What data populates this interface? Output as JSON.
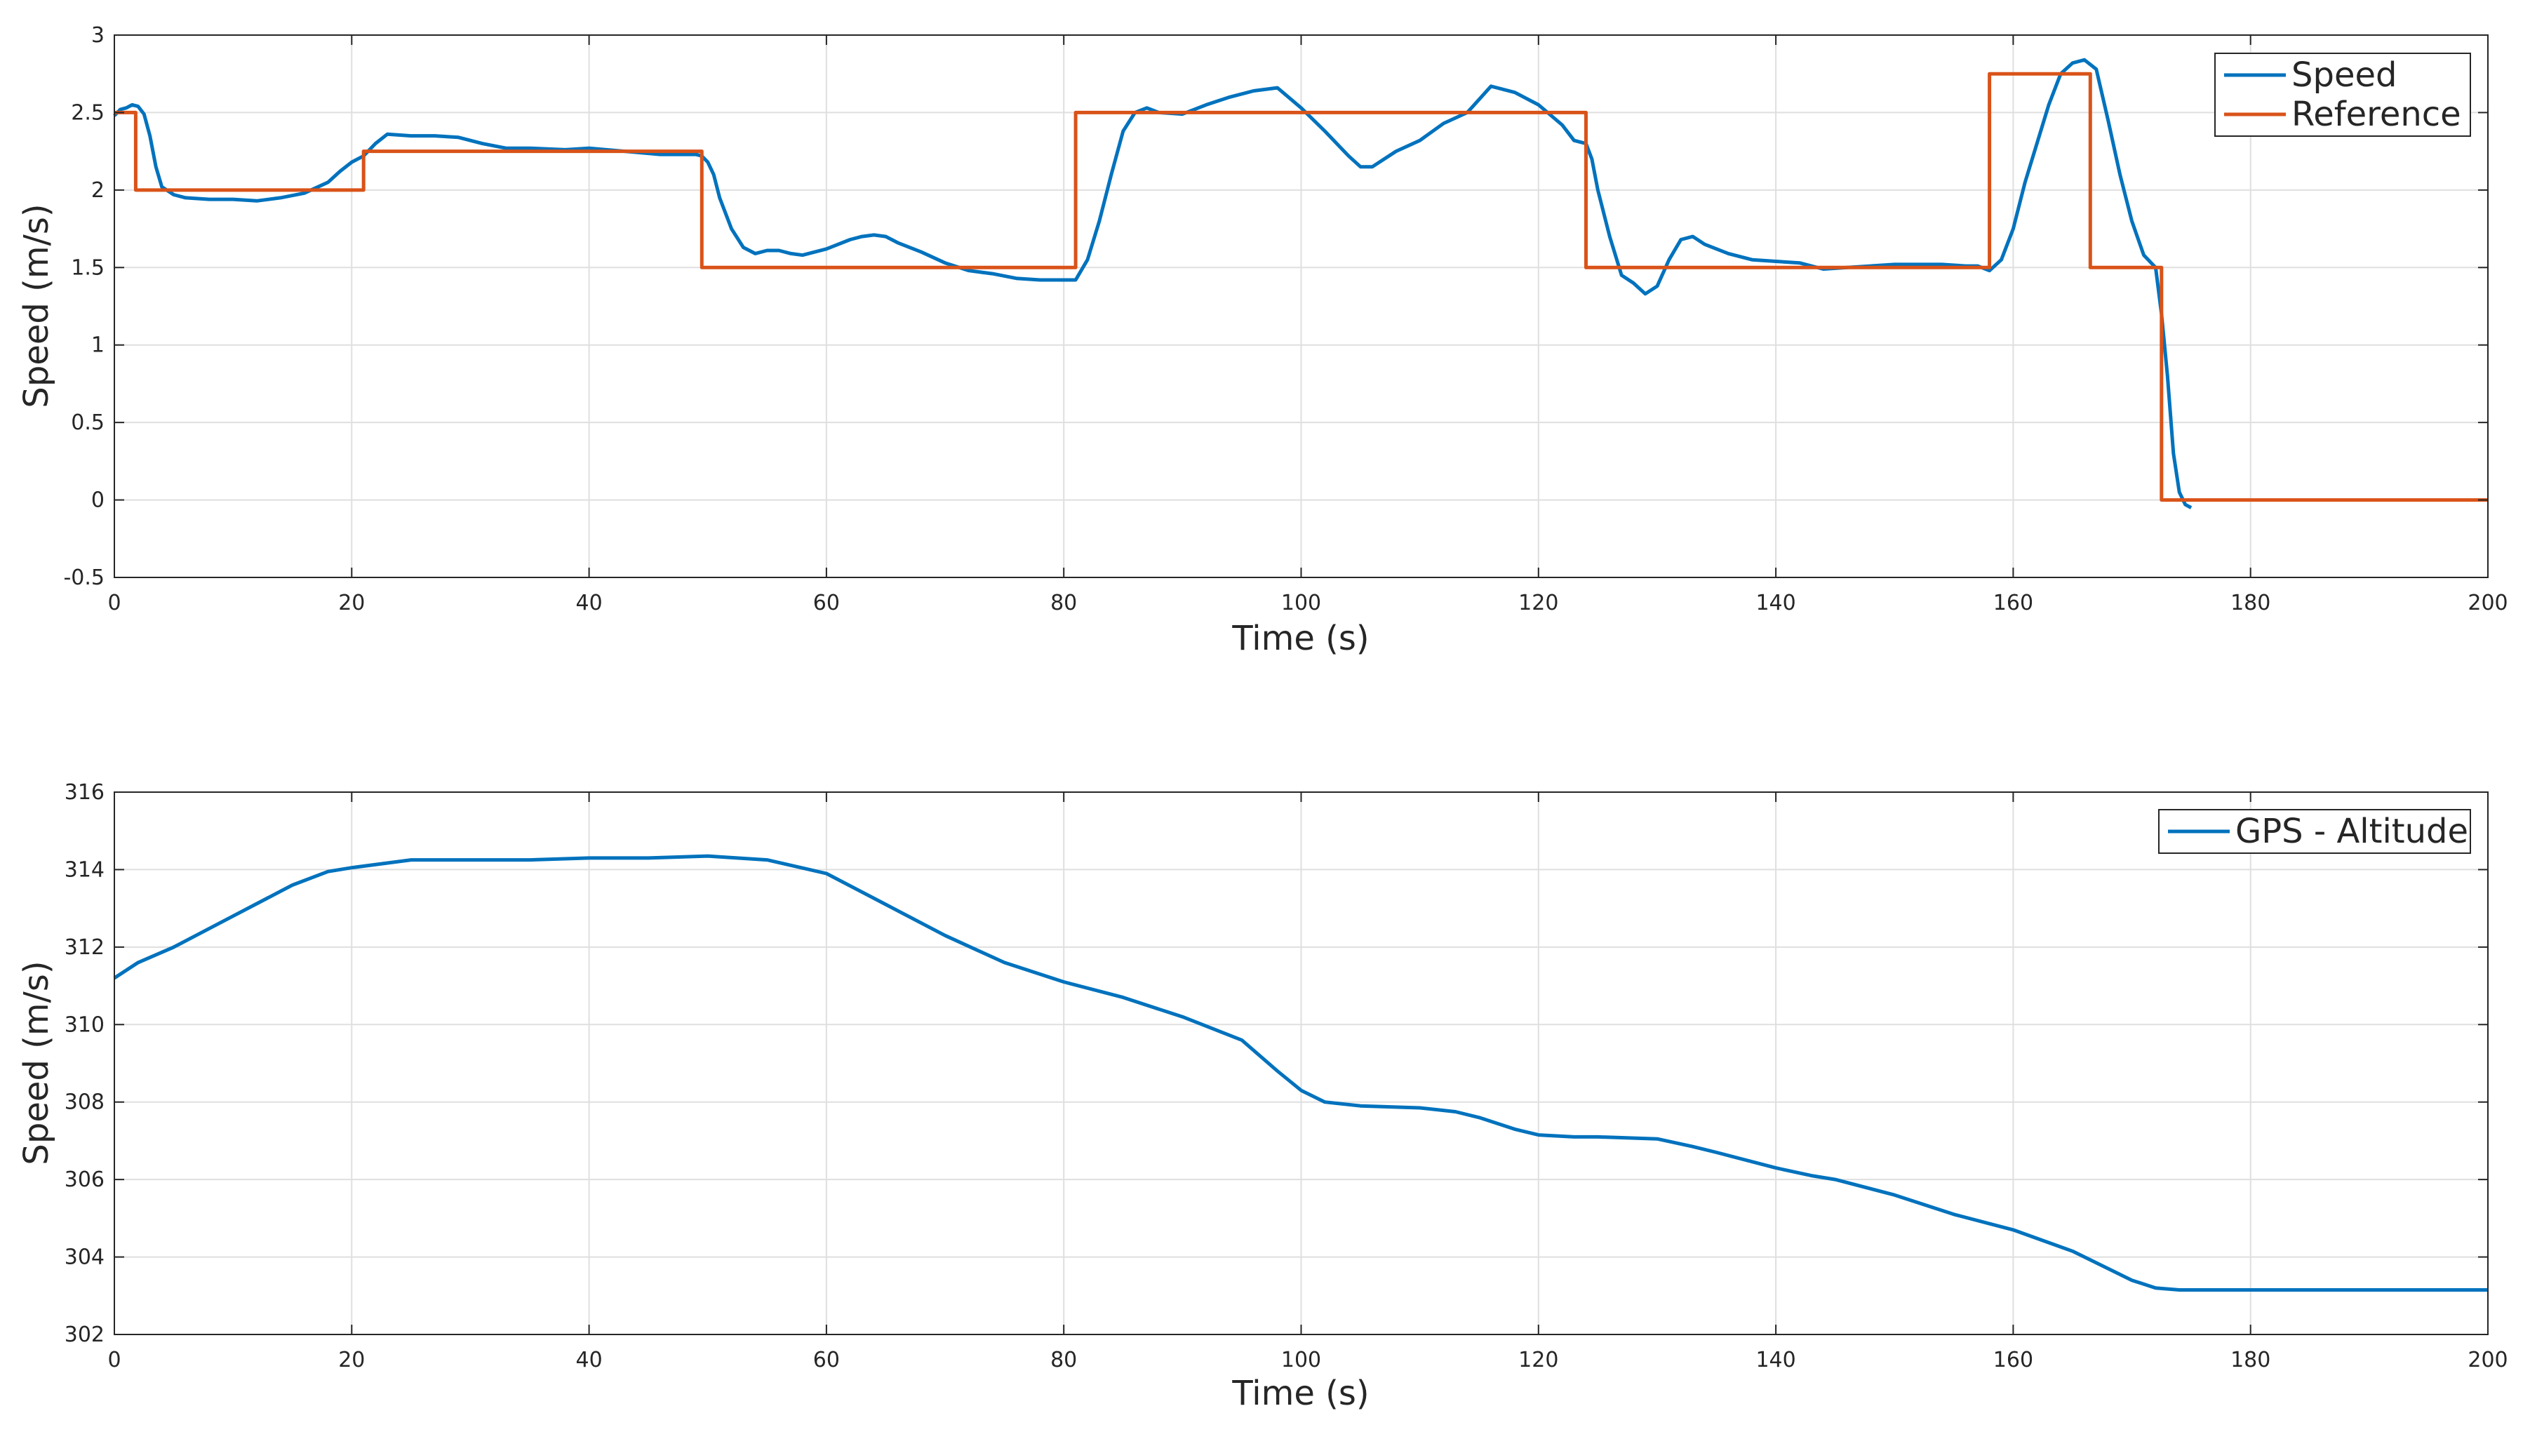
{
  "chart_data": [
    {
      "type": "line",
      "xlabel": "Time (s)",
      "ylabel": "Speed (m/s)",
      "xlim": [
        0,
        200
      ],
      "ylim": [
        -0.5,
        3
      ],
      "xticks": [
        0,
        20,
        40,
        60,
        80,
        100,
        120,
        140,
        160,
        180,
        200
      ],
      "yticks": [
        -0.5,
        0,
        0.5,
        1,
        1.5,
        2,
        2.5,
        3
      ],
      "ytick_labels": [
        "-0.5",
        "0",
        "0.5",
        "1",
        "1.5",
        "2",
        "2.5",
        "3"
      ],
      "grid": true,
      "legend_location": "top-right",
      "series": [
        {
          "name": "Speed",
          "color": "#0072BD",
          "x": [
            0,
            0.5,
            1,
            1.5,
            2,
            2.5,
            3,
            3.5,
            4,
            5,
            6,
            8,
            10,
            12,
            14,
            16,
            18,
            19,
            20,
            21,
            22,
            23,
            25,
            27,
            29,
            31,
            33,
            35,
            38,
            40,
            43,
            46,
            49,
            49.5,
            50,
            50.5,
            51,
            52,
            53,
            54,
            55,
            56,
            57,
            58,
            59,
            60,
            62,
            63,
            64,
            65,
            66,
            68,
            70,
            72,
            74,
            76,
            78,
            80,
            81,
            82,
            83,
            84,
            85,
            86,
            87,
            88,
            90,
            92,
            94,
            96,
            98,
            100,
            102,
            104,
            105,
            106,
            108,
            110,
            112,
            114,
            116,
            118,
            120,
            122,
            123,
            124,
            124.5,
            125,
            126,
            127,
            128,
            129,
            130,
            131,
            132,
            133,
            134,
            136,
            138,
            140,
            142,
            144,
            146,
            148,
            150,
            152,
            154,
            156,
            157,
            158,
            159,
            160,
            161,
            162,
            163,
            164,
            165,
            166,
            167,
            168,
            169,
            170,
            171,
            172,
            172.5,
            173,
            173.5,
            174,
            174.5,
            175
          ],
          "y": [
            2.48,
            2.52,
            2.53,
            2.55,
            2.54,
            2.49,
            2.35,
            2.15,
            2.02,
            1.97,
            1.95,
            1.94,
            1.94,
            1.93,
            1.95,
            1.98,
            2.05,
            2.12,
            2.18,
            2.22,
            2.3,
            2.36,
            2.35,
            2.35,
            2.34,
            2.3,
            2.27,
            2.27,
            2.26,
            2.27,
            2.25,
            2.23,
            2.23,
            2.22,
            2.18,
            2.1,
            1.95,
            1.75,
            1.63,
            1.59,
            1.61,
            1.61,
            1.59,
            1.58,
            1.6,
            1.62,
            1.68,
            1.7,
            1.71,
            1.7,
            1.66,
            1.6,
            1.53,
            1.48,
            1.46,
            1.43,
            1.42,
            1.42,
            1.42,
            1.55,
            1.8,
            2.1,
            2.38,
            2.5,
            2.53,
            2.5,
            2.49,
            2.55,
            2.6,
            2.64,
            2.66,
            2.53,
            2.38,
            2.22,
            2.15,
            2.15,
            2.25,
            2.32,
            2.43,
            2.5,
            2.67,
            2.63,
            2.55,
            2.42,
            2.32,
            2.3,
            2.2,
            2.0,
            1.7,
            1.45,
            1.4,
            1.33,
            1.38,
            1.55,
            1.68,
            1.7,
            1.65,
            1.59,
            1.55,
            1.54,
            1.53,
            1.49,
            1.5,
            1.51,
            1.52,
            1.52,
            1.52,
            1.51,
            1.51,
            1.48,
            1.55,
            1.75,
            2.05,
            2.3,
            2.55,
            2.75,
            2.82,
            2.84,
            2.78,
            2.45,
            2.1,
            1.8,
            1.58,
            1.5,
            1.2,
            0.8,
            0.3,
            0.05,
            -0.03,
            -0.05
          ]
        },
        {
          "name": "Reference",
          "color": "#D95319",
          "x": [
            0,
            1.8,
            1.8,
            21,
            21,
            49.5,
            49.5,
            81,
            81,
            124,
            124,
            158,
            158,
            166.5,
            166.5,
            172.5,
            172.5,
            200
          ],
          "y": [
            2.5,
            2.5,
            2.0,
            2.0,
            2.25,
            2.25,
            1.5,
            1.5,
            2.5,
            2.5,
            1.5,
            1.5,
            2.75,
            2.75,
            1.5,
            1.5,
            0.0,
            0.0
          ]
        }
      ]
    },
    {
      "type": "line",
      "xlabel": "Time (s)",
      "ylabel": "Speed (m/s)",
      "xlim": [
        0,
        200
      ],
      "ylim": [
        302,
        316
      ],
      "xticks": [
        0,
        20,
        40,
        60,
        80,
        100,
        120,
        140,
        160,
        180,
        200
      ],
      "yticks": [
        302,
        304,
        306,
        308,
        310,
        312,
        314,
        316
      ],
      "ytick_labels": [
        "302",
        "304",
        "306",
        "308",
        "310",
        "312",
        "314",
        "316"
      ],
      "grid": true,
      "legend_location": "top-right",
      "series": [
        {
          "name": "GPS - Altitude",
          "color": "#0072BD",
          "x": [
            0,
            2,
            5,
            10,
            15,
            18,
            20,
            25,
            30,
            35,
            40,
            45,
            50,
            55,
            60,
            65,
            70,
            75,
            80,
            85,
            88,
            90,
            95,
            98,
            100,
            102,
            105,
            110,
            113,
            115,
            118,
            120,
            123,
            125,
            130,
            133,
            135,
            140,
            143,
            145,
            150,
            155,
            160,
            165,
            168,
            170,
            172,
            174,
            176,
            180,
            190,
            200
          ],
          "y": [
            311.2,
            311.6,
            312.0,
            312.8,
            313.6,
            313.95,
            314.05,
            314.25,
            314.25,
            314.25,
            314.3,
            314.3,
            314.35,
            314.25,
            313.9,
            313.1,
            312.3,
            311.6,
            311.1,
            310.7,
            310.4,
            310.2,
            309.6,
            308.8,
            308.3,
            308.0,
            307.9,
            307.85,
            307.75,
            307.6,
            307.3,
            307.15,
            307.1,
            307.1,
            307.05,
            306.85,
            306.7,
            306.3,
            306.1,
            306.0,
            305.6,
            305.1,
            304.7,
            304.15,
            303.7,
            303.4,
            303.2,
            303.15,
            303.15,
            303.15,
            303.15,
            303.15
          ]
        }
      ]
    }
  ]
}
